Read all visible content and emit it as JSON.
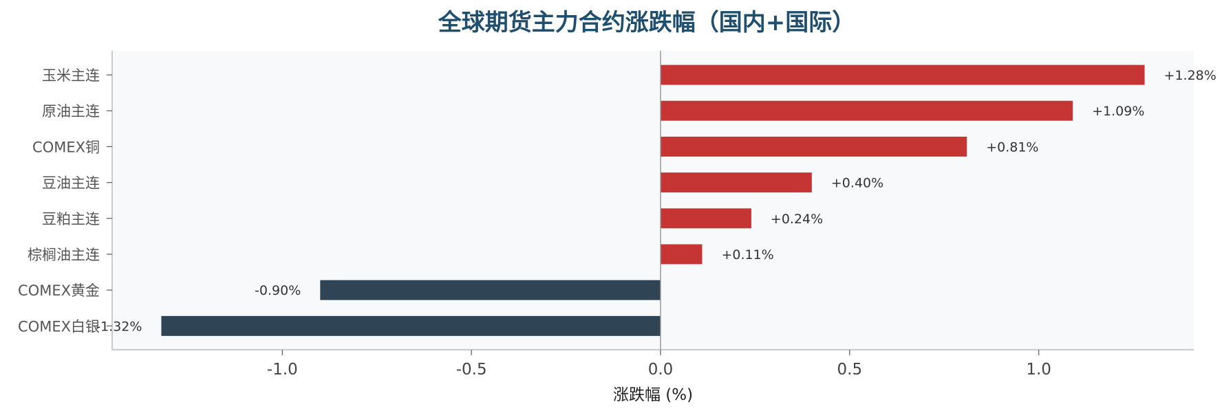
{
  "chart_data": {
    "type": "bar",
    "orientation": "horizontal",
    "title": "全球期货主力合约涨跌幅（国内+国际）",
    "xlabel": "涨跌幅 (%)",
    "ylabel": "",
    "xlim": [
      -1.45,
      1.41
    ],
    "xticks": [
      -1.0,
      -0.5,
      0.0,
      0.5,
      1.0
    ],
    "xtick_labels": [
      "-1.0",
      "-0.5",
      "0.0",
      "0.5",
      "1.0"
    ],
    "categories": [
      "玉米主连",
      "原油主连",
      "COMEX铜",
      "豆油主连",
      "豆粕主连",
      "棕榈油主连",
      "COMEX黄金",
      "COMEX白银"
    ],
    "values": [
      1.28,
      1.09,
      0.81,
      0.4,
      0.24,
      0.11,
      -0.9,
      -1.32
    ],
    "value_labels": [
      "+1.28%",
      "+1.09%",
      "+0.81%",
      "+0.40%",
      "+0.24%",
      "+0.11%",
      "-0.90%",
      "-1.32%"
    ],
    "grid": false,
    "legend": "none",
    "colors": {
      "positive": "#c43533",
      "negative": "#2f4556",
      "plot_background": "#f8f9fb",
      "title": "#1f4e6e",
      "zero_line": "#999999",
      "axis": "#bbbbbb"
    }
  }
}
